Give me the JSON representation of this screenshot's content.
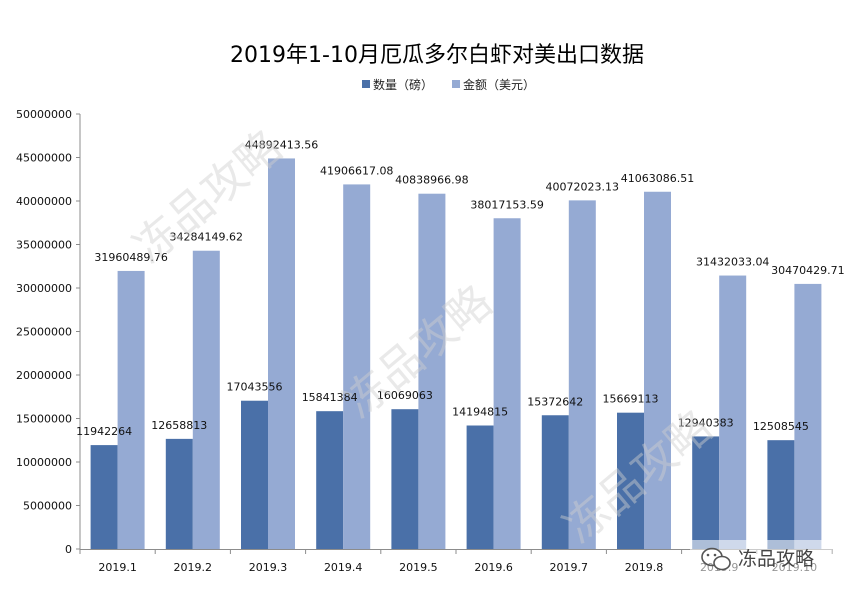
{
  "chart_data": {
    "type": "bar",
    "title": "2019年1-10月厄瓜多尔白虾对美出口数据",
    "categories": [
      "2019.1",
      "2019.2",
      "2019.3",
      "2019.4",
      "2019.5",
      "2019.6",
      "2019.7",
      "2019.8",
      "2019.9",
      "2019.10"
    ],
    "series": [
      {
        "name": "数量（磅）",
        "color": "#4a70a8",
        "values": [
          11942264,
          12658813,
          17043556,
          15841384,
          16069063,
          14194815,
          15372642,
          15669113,
          12940383,
          12508545
        ],
        "labels": [
          "11942264",
          "12658813",
          "17043556",
          "15841384",
          "16069063",
          "14194815",
          "15372642",
          "15669113",
          "12940383",
          "12508545"
        ]
      },
      {
        "name": "金额（美元）",
        "color": "#95aad3",
        "values": [
          31960489.76,
          34284149.62,
          44892413.56,
          41906617.08,
          40838966.98,
          38017153.59,
          40072023.13,
          41063086.51,
          31432033.04,
          30470429.71
        ],
        "labels": [
          "31960489.76",
          "34284149.62",
          "44892413.56",
          "41906617.08",
          "40838966.98",
          "38017153.59",
          "40072023.13",
          "41063086.51",
          "31432033.04",
          "30470429.71"
        ]
      }
    ],
    "ylim": [
      0,
      50000000
    ],
    "yticks": [
      "0",
      "5000000",
      "10000000",
      "15000000",
      "20000000",
      "25000000",
      "30000000",
      "35000000",
      "40000000",
      "45000000",
      "50000000"
    ],
    "xlabel": "",
    "ylabel": "",
    "grid": false,
    "legend": "top-center"
  },
  "watermark": {
    "text": "冻品攻略"
  },
  "brand": {
    "text": "冻品攻略",
    "icon": "wechat-icon"
  }
}
